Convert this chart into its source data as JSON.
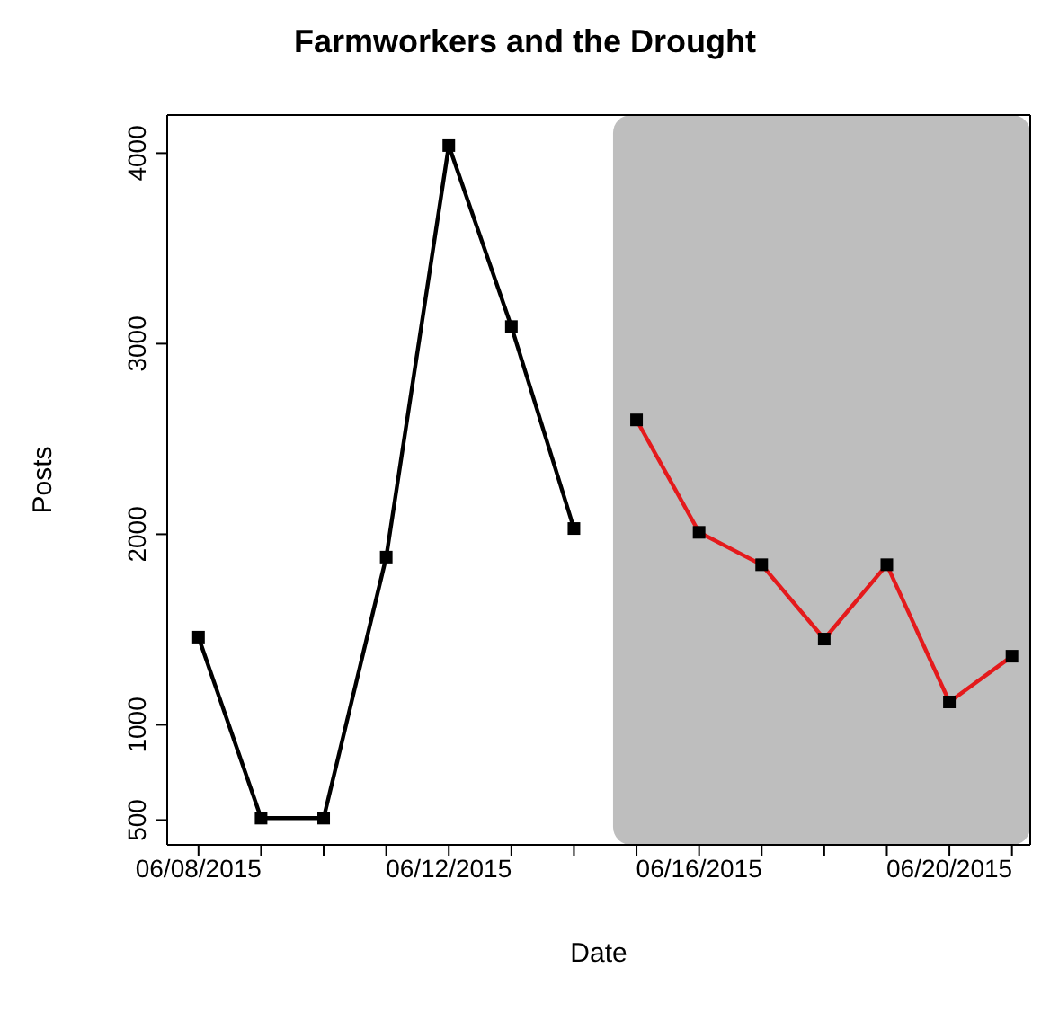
{
  "chart_data": {
    "type": "line",
    "title": "Farmworkers and the Drought",
    "xlabel": "Date",
    "ylabel": "Posts",
    "series": [
      {
        "color": "#000000",
        "x": [
          "2015-06-08",
          "2015-06-09",
          "2015-06-10",
          "2015-06-11",
          "2015-06-12",
          "2015-06-13",
          "2015-06-14"
        ],
        "values": [
          1460,
          510,
          510,
          1880,
          4040,
          3090,
          2030
        ]
      },
      {
        "color": "#e41a1c",
        "x": [
          "2015-06-15",
          "2015-06-16",
          "2015-06-17",
          "2015-06-18",
          "2015-06-19",
          "2015-06-20",
          "2015-06-21"
        ],
        "values": [
          2600,
          2010,
          1840,
          1450,
          1840,
          1120,
          1360
        ]
      }
    ],
    "xlim": [
      "2015-06-07T12:00",
      "2015-06-21T07:00"
    ],
    "xticks": [
      {
        "value": "2015-06-08",
        "label": "06/08/2015"
      },
      {
        "value": "2015-06-09",
        "label": null
      },
      {
        "value": "2015-06-10",
        "label": null
      },
      {
        "value": "2015-06-11",
        "label": null
      },
      {
        "value": "2015-06-12",
        "label": "06/12/2015"
      },
      {
        "value": "2015-06-13",
        "label": null
      },
      {
        "value": "2015-06-14",
        "label": null
      },
      {
        "value": "2015-06-15",
        "label": null
      },
      {
        "value": "2015-06-16",
        "label": "06/16/2015"
      },
      {
        "value": "2015-06-17",
        "label": null
      },
      {
        "value": "2015-06-18",
        "label": null
      },
      {
        "value": "2015-06-19",
        "label": null
      },
      {
        "value": "2015-06-20",
        "label": "06/20/2015"
      },
      {
        "value": "2015-06-21",
        "label": null
      }
    ],
    "ylim": [
      370,
      4200
    ],
    "yticks": [
      500,
      1000,
      2000,
      3000,
      4000
    ],
    "bands": [
      {
        "axis": "x",
        "from": "2015-06-14T15:00",
        "to": "2015-06-21T07:00",
        "color": "#bebebe"
      }
    ],
    "marker": "square",
    "line_style": "solid"
  }
}
